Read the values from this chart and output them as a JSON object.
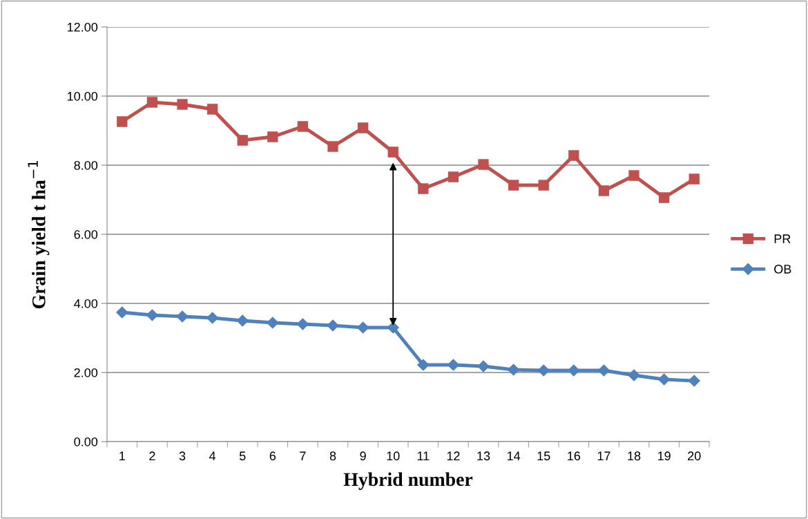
{
  "chart_data": {
    "type": "line",
    "xlabel": "Hybrid number",
    "ylabel": "Grain yield t ha$^{−1}$",
    "categories": [
      "1",
      "2",
      "3",
      "4",
      "5",
      "6",
      "7",
      "8",
      "9",
      "10",
      "11",
      "12",
      "13",
      "14",
      "15",
      "16",
      "17",
      "18",
      "19",
      "20"
    ],
    "series": [
      {
        "name": "PR",
        "color": "#c0504d",
        "marker": "square",
        "values": [
          9.26,
          9.82,
          9.76,
          9.62,
          8.72,
          8.82,
          9.12,
          8.54,
          9.08,
          8.38,
          7.32,
          7.66,
          8.02,
          7.42,
          7.42,
          8.28,
          7.26,
          7.7,
          7.06,
          7.6
        ]
      },
      {
        "name": "OB",
        "color": "#4f81bd",
        "marker": "diamond",
        "values": [
          3.74,
          3.66,
          3.62,
          3.58,
          3.5,
          3.44,
          3.4,
          3.36,
          3.3,
          3.3,
          2.22,
          2.22,
          2.18,
          2.08,
          2.06,
          2.06,
          2.06,
          1.92,
          1.8,
          1.76
        ]
      }
    ],
    "ylim": [
      0,
      12
    ],
    "yticks": [
      {
        "value": 0,
        "label": "0.00"
      },
      {
        "value": 2,
        "label": "2.00"
      },
      {
        "value": 4,
        "label": "4.00"
      },
      {
        "value": 6,
        "label": "6.00"
      },
      {
        "value": 8,
        "label": "8.00"
      },
      {
        "value": 10,
        "label": "10.00"
      },
      {
        "value": 12,
        "label": "12.00"
      }
    ],
    "grid": "y",
    "legend": "right",
    "line_style": "solid"
  }
}
